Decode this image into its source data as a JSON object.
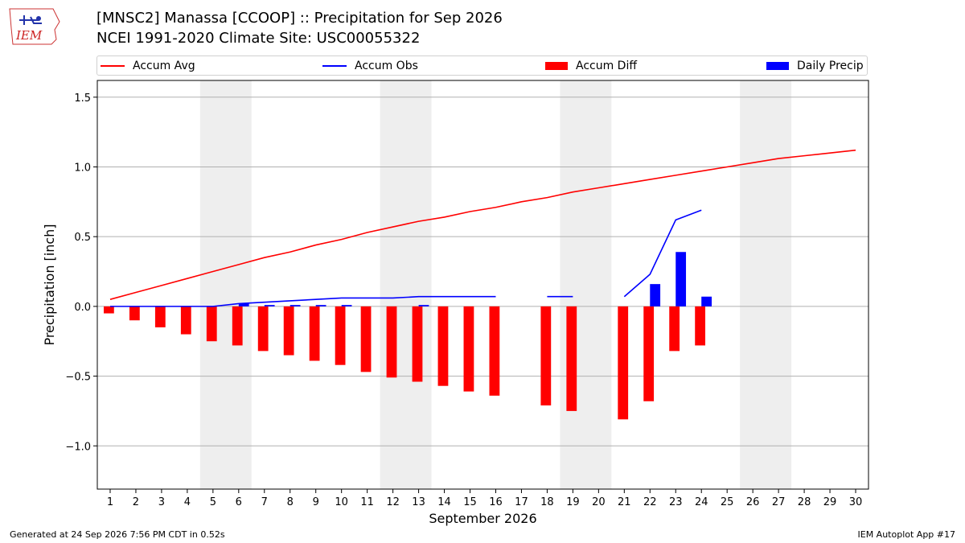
{
  "header": {
    "title_line1": "[MNSC2] Manassa [CCOOP] :: Precipitation for Sep 2026",
    "title_line2": "NCEI 1991-2020 Climate Site: USC00055322",
    "logo_text": "IEM"
  },
  "legend": {
    "items": [
      {
        "label": "Accum Avg",
        "kind": "line",
        "color": "#ff0000"
      },
      {
        "label": "Accum Obs",
        "kind": "line",
        "color": "#0000ff"
      },
      {
        "label": "Accum Diff",
        "kind": "bar",
        "color": "#ff0000"
      },
      {
        "label": "Daily Precip",
        "kind": "bar",
        "color": "#0000ff"
      }
    ]
  },
  "footer": {
    "generated": "Generated at 24 Sep 2026 7:56 PM CDT in 0.52s",
    "app": "IEM Autoplot App #17"
  },
  "chart_data": {
    "type": "bar",
    "xlabel": "September 2026",
    "ylabel": "Precipitation [inch]",
    "ylim": [
      -1.31,
      1.62
    ],
    "xlim": [
      0.5,
      30.5
    ],
    "yticks": [
      -1.0,
      -0.5,
      0.0,
      0.5,
      1.0,
      1.5
    ],
    "ytick_labels": [
      "−1.0",
      "−0.5",
      "0.0",
      "0.5",
      "1.0",
      "1.5"
    ],
    "xticks": [
      1,
      2,
      3,
      4,
      5,
      6,
      7,
      8,
      9,
      10,
      11,
      12,
      13,
      14,
      15,
      16,
      17,
      18,
      19,
      20,
      21,
      22,
      23,
      24,
      25,
      26,
      27,
      28,
      29,
      30
    ],
    "grid": "horizontal",
    "weekend_shading": [
      [
        5,
        6
      ],
      [
        12,
        13
      ],
      [
        19,
        20
      ],
      [
        26,
        27
      ]
    ],
    "colors": {
      "avg": "#ff0000",
      "obs": "#0000ff",
      "diff": "#ff0000",
      "daily": "#0000ff",
      "weekend": "#eeeeee",
      "grid": "#b0b0b0"
    },
    "series": [
      {
        "name": "Accum Avg",
        "kind": "line",
        "x": [
          1,
          2,
          3,
          4,
          5,
          6,
          7,
          8,
          9,
          10,
          11,
          12,
          13,
          14,
          15,
          16,
          17,
          18,
          19,
          20,
          21,
          22,
          23,
          24,
          25,
          26,
          27,
          28,
          29,
          30
        ],
        "values": [
          0.05,
          0.1,
          0.15,
          0.2,
          0.25,
          0.3,
          0.35,
          0.39,
          0.44,
          0.48,
          0.53,
          0.57,
          0.61,
          0.64,
          0.68,
          0.71,
          0.75,
          0.78,
          0.82,
          0.85,
          0.88,
          0.91,
          0.94,
          0.97,
          1.0,
          1.03,
          1.06,
          1.08,
          1.1,
          1.12
        ]
      },
      {
        "name": "Accum Obs",
        "kind": "line",
        "x": [
          1,
          2,
          3,
          4,
          5,
          6,
          7,
          8,
          9,
          10,
          11,
          12,
          13,
          14,
          15,
          16,
          17,
          18,
          19,
          20,
          21,
          22,
          23,
          24
        ],
        "values": [
          0.0,
          0.0,
          0.0,
          0.0,
          0.0,
          0.02,
          0.03,
          0.04,
          0.05,
          0.06,
          0.06,
          0.06,
          0.07,
          0.07,
          0.07,
          0.07,
          null,
          0.07,
          0.07,
          null,
          0.07,
          0.23,
          0.62,
          0.69
        ]
      },
      {
        "name": "Accum Diff",
        "kind": "bar",
        "x": [
          1,
          2,
          3,
          4,
          5,
          6,
          7,
          8,
          9,
          10,
          11,
          12,
          13,
          14,
          15,
          16,
          18,
          19,
          21,
          22,
          23,
          24
        ],
        "values": [
          -0.05,
          -0.1,
          -0.15,
          -0.2,
          -0.25,
          -0.28,
          -0.32,
          -0.35,
          -0.39,
          -0.42,
          -0.47,
          -0.51,
          -0.54,
          -0.57,
          -0.61,
          -0.64,
          -0.71,
          -0.75,
          -0.81,
          -0.68,
          -0.32,
          -0.28
        ]
      },
      {
        "name": "Daily Precip",
        "kind": "bar",
        "x": [
          6,
          7,
          8,
          9,
          10,
          13,
          22,
          23,
          24
        ],
        "values": [
          0.02,
          0.01,
          0.01,
          0.01,
          0.01,
          0.01,
          0.16,
          0.39,
          0.07
        ]
      }
    ]
  }
}
